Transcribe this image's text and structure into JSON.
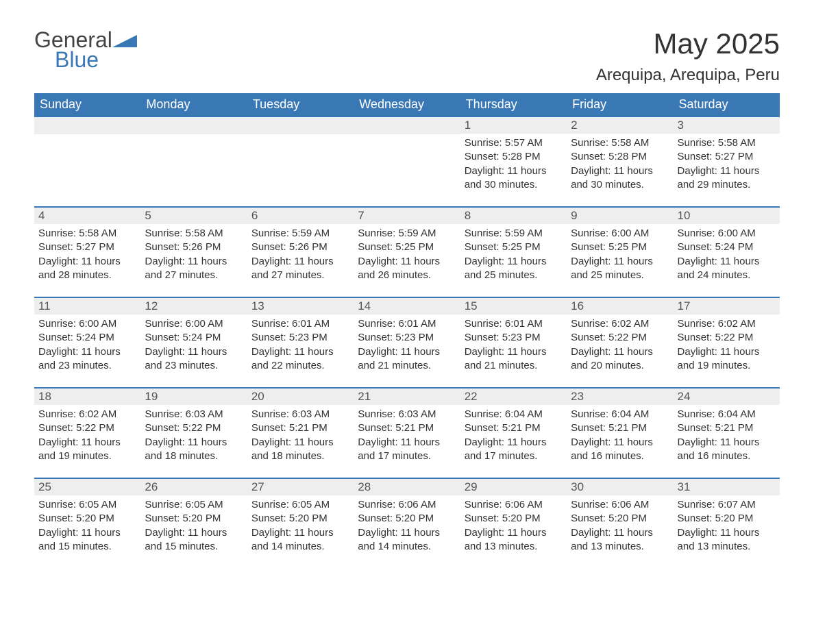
{
  "logo": {
    "word1": "General",
    "word2": "Blue",
    "shape_color": "#3a78b5",
    "text_color": "#444444"
  },
  "title": "May 2025",
  "location": "Arequipa, Arequipa, Peru",
  "colors": {
    "header_bg": "#3a78b5",
    "header_text": "#ffffff",
    "daynum_bg": "#eeeeee",
    "daynum_text": "#555555",
    "body_text": "#333333",
    "row_border": "#3a78b5",
    "background": "#ffffff"
  },
  "day_names": [
    "Sunday",
    "Monday",
    "Tuesday",
    "Wednesday",
    "Thursday",
    "Friday",
    "Saturday"
  ],
  "weeks": [
    [
      null,
      null,
      null,
      null,
      {
        "n": "1",
        "sunrise": "5:57 AM",
        "sunset": "5:28 PM",
        "daylight": "11 hours and 30 minutes."
      },
      {
        "n": "2",
        "sunrise": "5:58 AM",
        "sunset": "5:28 PM",
        "daylight": "11 hours and 30 minutes."
      },
      {
        "n": "3",
        "sunrise": "5:58 AM",
        "sunset": "5:27 PM",
        "daylight": "11 hours and 29 minutes."
      }
    ],
    [
      {
        "n": "4",
        "sunrise": "5:58 AM",
        "sunset": "5:27 PM",
        "daylight": "11 hours and 28 minutes."
      },
      {
        "n": "5",
        "sunrise": "5:58 AM",
        "sunset": "5:26 PM",
        "daylight": "11 hours and 27 minutes."
      },
      {
        "n": "6",
        "sunrise": "5:59 AM",
        "sunset": "5:26 PM",
        "daylight": "11 hours and 27 minutes."
      },
      {
        "n": "7",
        "sunrise": "5:59 AM",
        "sunset": "5:25 PM",
        "daylight": "11 hours and 26 minutes."
      },
      {
        "n": "8",
        "sunrise": "5:59 AM",
        "sunset": "5:25 PM",
        "daylight": "11 hours and 25 minutes."
      },
      {
        "n": "9",
        "sunrise": "6:00 AM",
        "sunset": "5:25 PM",
        "daylight": "11 hours and 25 minutes."
      },
      {
        "n": "10",
        "sunrise": "6:00 AM",
        "sunset": "5:24 PM",
        "daylight": "11 hours and 24 minutes."
      }
    ],
    [
      {
        "n": "11",
        "sunrise": "6:00 AM",
        "sunset": "5:24 PM",
        "daylight": "11 hours and 23 minutes."
      },
      {
        "n": "12",
        "sunrise": "6:00 AM",
        "sunset": "5:24 PM",
        "daylight": "11 hours and 23 minutes."
      },
      {
        "n": "13",
        "sunrise": "6:01 AM",
        "sunset": "5:23 PM",
        "daylight": "11 hours and 22 minutes."
      },
      {
        "n": "14",
        "sunrise": "6:01 AM",
        "sunset": "5:23 PM",
        "daylight": "11 hours and 21 minutes."
      },
      {
        "n": "15",
        "sunrise": "6:01 AM",
        "sunset": "5:23 PM",
        "daylight": "11 hours and 21 minutes."
      },
      {
        "n": "16",
        "sunrise": "6:02 AM",
        "sunset": "5:22 PM",
        "daylight": "11 hours and 20 minutes."
      },
      {
        "n": "17",
        "sunrise": "6:02 AM",
        "sunset": "5:22 PM",
        "daylight": "11 hours and 19 minutes."
      }
    ],
    [
      {
        "n": "18",
        "sunrise": "6:02 AM",
        "sunset": "5:22 PM",
        "daylight": "11 hours and 19 minutes."
      },
      {
        "n": "19",
        "sunrise": "6:03 AM",
        "sunset": "5:22 PM",
        "daylight": "11 hours and 18 minutes."
      },
      {
        "n": "20",
        "sunrise": "6:03 AM",
        "sunset": "5:21 PM",
        "daylight": "11 hours and 18 minutes."
      },
      {
        "n": "21",
        "sunrise": "6:03 AM",
        "sunset": "5:21 PM",
        "daylight": "11 hours and 17 minutes."
      },
      {
        "n": "22",
        "sunrise": "6:04 AM",
        "sunset": "5:21 PM",
        "daylight": "11 hours and 17 minutes."
      },
      {
        "n": "23",
        "sunrise": "6:04 AM",
        "sunset": "5:21 PM",
        "daylight": "11 hours and 16 minutes."
      },
      {
        "n": "24",
        "sunrise": "6:04 AM",
        "sunset": "5:21 PM",
        "daylight": "11 hours and 16 minutes."
      }
    ],
    [
      {
        "n": "25",
        "sunrise": "6:05 AM",
        "sunset": "5:20 PM",
        "daylight": "11 hours and 15 minutes."
      },
      {
        "n": "26",
        "sunrise": "6:05 AM",
        "sunset": "5:20 PM",
        "daylight": "11 hours and 15 minutes."
      },
      {
        "n": "27",
        "sunrise": "6:05 AM",
        "sunset": "5:20 PM",
        "daylight": "11 hours and 14 minutes."
      },
      {
        "n": "28",
        "sunrise": "6:06 AM",
        "sunset": "5:20 PM",
        "daylight": "11 hours and 14 minutes."
      },
      {
        "n": "29",
        "sunrise": "6:06 AM",
        "sunset": "5:20 PM",
        "daylight": "11 hours and 13 minutes."
      },
      {
        "n": "30",
        "sunrise": "6:06 AM",
        "sunset": "5:20 PM",
        "daylight": "11 hours and 13 minutes."
      },
      {
        "n": "31",
        "sunrise": "6:07 AM",
        "sunset": "5:20 PM",
        "daylight": "11 hours and 13 minutes."
      }
    ]
  ],
  "labels": {
    "sunrise": "Sunrise: ",
    "sunset": "Sunset: ",
    "daylight": "Daylight: "
  }
}
